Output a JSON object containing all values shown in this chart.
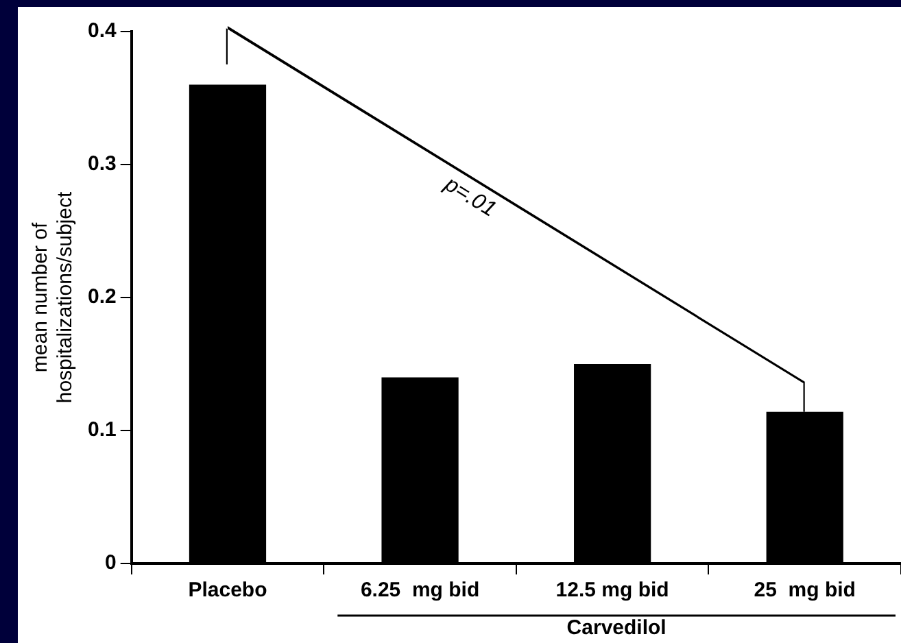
{
  "chart_data": {
    "type": "bar",
    "xlabel": "Carvedilol",
    "ylabel": "mean number of\nhospitalizations/subject",
    "categories": [
      "Placebo",
      "6.25  mg bid",
      "12.5 mg bid",
      "25  mg bid"
    ],
    "values": [
      0.36,
      0.14,
      0.15,
      0.114
    ],
    "color": "#000000",
    "ylim": [
      0,
      0.4
    ],
    "yticks": [
      0,
      0.1,
      0.2,
      0.3,
      0.4
    ],
    "grid": false,
    "legend": false,
    "annotations": [
      "p=.01"
    ]
  }
}
